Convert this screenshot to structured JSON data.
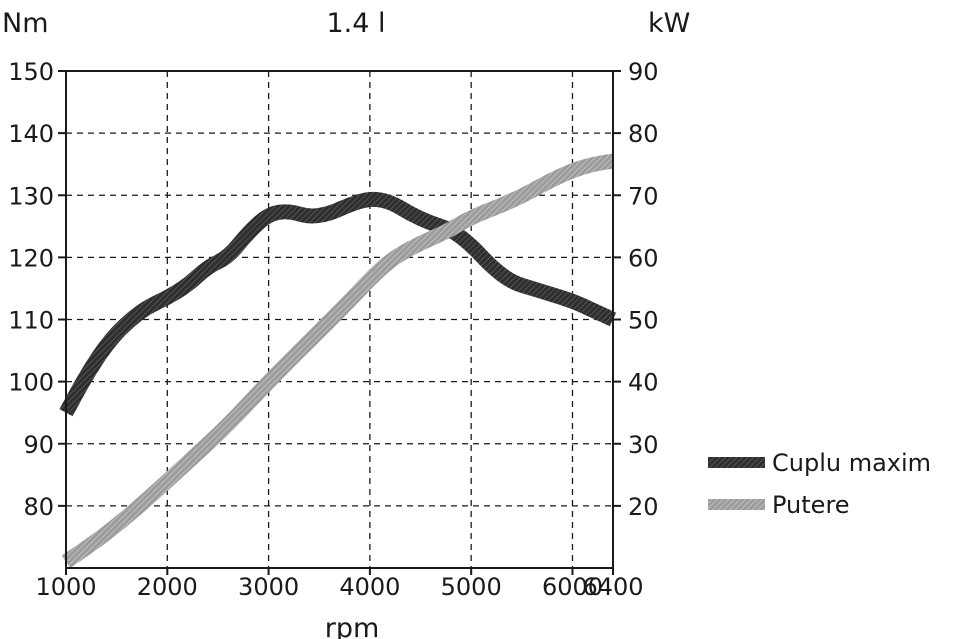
{
  "chart_data": {
    "type": "line",
    "title": "1.4 l",
    "xlabel": "rpm",
    "ylabel_left": "Nm",
    "ylabel_right": "kW",
    "xlim": [
      1000,
      6400
    ],
    "ylim_left": [
      70,
      150
    ],
    "ylim_right": [
      10,
      90
    ],
    "x_ticks": [
      "1000",
      "2000",
      "3000",
      "4000",
      "5000",
      "6000",
      "6400"
    ],
    "y_left_ticks": [
      "80",
      "90",
      "100",
      "110",
      "120",
      "130",
      "140",
      "150"
    ],
    "y_right_ticks": [
      "20",
      "30",
      "40",
      "50",
      "60",
      "70",
      "80",
      "90"
    ],
    "grid": true,
    "legend_position": "right",
    "series": [
      {
        "name": "Cuplu maxim",
        "axis": "left",
        "color": "#3a3a3a",
        "x": [
          1000,
          1200,
          1400,
          1600,
          1800,
          2000,
          2200,
          2400,
          2600,
          2800,
          3000,
          3200,
          3400,
          3600,
          3800,
          4000,
          4200,
          4400,
          4600,
          4800,
          5000,
          5200,
          5400,
          5600,
          5800,
          6000,
          6200,
          6400
        ],
        "values": [
          95,
          101,
          106,
          109.5,
          112,
          113.5,
          115.5,
          118.5,
          120,
          124,
          127,
          127.5,
          126.5,
          127,
          128.5,
          129.5,
          129,
          127,
          125.5,
          124.5,
          122,
          118.5,
          116,
          115,
          114,
          113,
          111.5,
          110
        ]
      },
      {
        "name": "Putere",
        "axis": "right",
        "color": "#a8a8a8",
        "x": [
          1000,
          1400,
          1800,
          2200,
          2600,
          3000,
          3400,
          3800,
          4000,
          4200,
          4400,
          4600,
          4800,
          5000,
          5400,
          5800,
          6000,
          6200,
          6400
        ],
        "values": [
          11,
          15.5,
          21,
          27,
          33,
          40,
          46.5,
          53,
          56.5,
          59.5,
          61.5,
          63,
          64.5,
          66.5,
          69,
          72.5,
          74,
          75,
          75.5
        ]
      }
    ]
  }
}
